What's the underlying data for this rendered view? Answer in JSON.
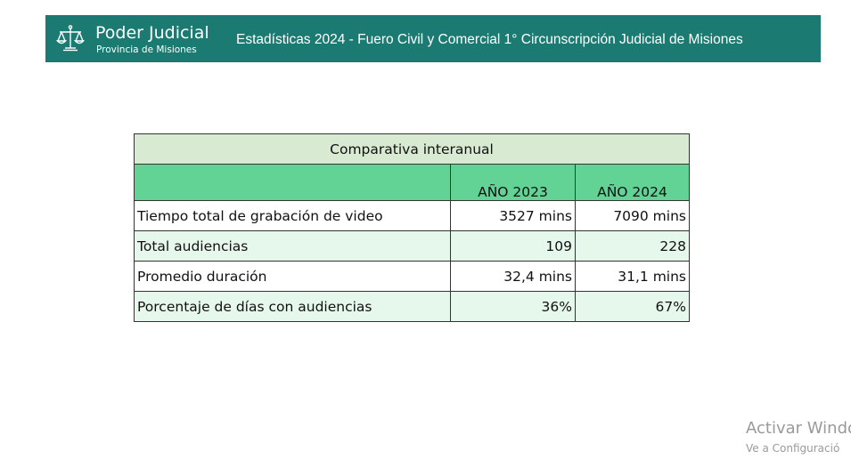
{
  "header": {
    "brand_name": "Poder Judicial",
    "brand_sub": "Provincia de Misiones",
    "title": "Estadísticas 2024 - Fuero Civil y Comercial 1° Circunscripción Judicial de Misiones",
    "logo_icon": "scales-of-justice-icon"
  },
  "table": {
    "caption": "Comparativa interanual",
    "columns": [
      "",
      "AÑO 2023",
      "AÑO 2024"
    ],
    "rows": [
      {
        "label": "Tiempo total de grabación de video",
        "v2023": "3527 mins",
        "v2024": "7090 mins"
      },
      {
        "label": "Total audiencias",
        "v2023": "109",
        "v2024": "228"
      },
      {
        "label": "Promedio duración",
        "v2023": "32,4 mins",
        "v2024": "31,1 mins"
      },
      {
        "label": "Porcentaje de días con audiencias",
        "v2023": "36%",
        "v2024": "67%"
      }
    ]
  },
  "watermark": {
    "line1": "Activar Windo",
    "line2": "Ve a Configuració"
  },
  "colors": {
    "header_bg": "#1b7a72",
    "caption_bg": "#d9ead3",
    "column_header_bg": "#62d295",
    "alt_row_bg": "#e6f7ec"
  }
}
